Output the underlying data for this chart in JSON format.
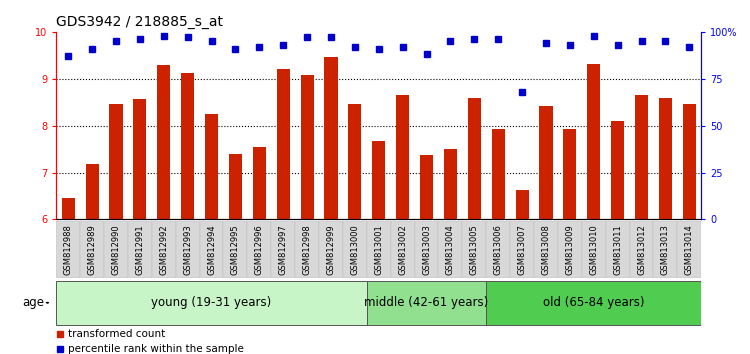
{
  "title": "GDS3942 / 218885_s_at",
  "samples": [
    "GSM812988",
    "GSM812989",
    "GSM812990",
    "GSM812991",
    "GSM812992",
    "GSM812993",
    "GSM812994",
    "GSM812995",
    "GSM812996",
    "GSM812997",
    "GSM812998",
    "GSM812999",
    "GSM813000",
    "GSM813001",
    "GSM813002",
    "GSM813003",
    "GSM813004",
    "GSM813005",
    "GSM813006",
    "GSM813007",
    "GSM813008",
    "GSM813009",
    "GSM813010",
    "GSM813011",
    "GSM813012",
    "GSM813013",
    "GSM813014"
  ],
  "bar_values": [
    6.45,
    7.18,
    8.47,
    8.57,
    9.3,
    9.12,
    8.25,
    7.4,
    7.55,
    9.2,
    9.07,
    9.47,
    8.47,
    7.68,
    8.65,
    7.38,
    7.5,
    8.6,
    7.93,
    6.62,
    8.42,
    7.93,
    9.31,
    8.1,
    8.65,
    8.58,
    8.47
  ],
  "percentile_values": [
    87,
    91,
    95,
    96,
    98,
    97,
    95,
    91,
    92,
    93,
    97,
    97,
    92,
    91,
    92,
    88,
    95,
    96,
    96,
    68,
    94,
    93,
    98,
    93,
    95,
    95,
    92
  ],
  "groups": [
    {
      "label": "young (19-31 years)",
      "start": 0,
      "end": 13,
      "color": "#c8f5c8"
    },
    {
      "label": "middle (42-61 years)",
      "start": 13,
      "end": 18,
      "color": "#90e090"
    },
    {
      "label": "old (65-84 years)",
      "start": 18,
      "end": 27,
      "color": "#50cc50"
    }
  ],
  "bar_color": "#cc2200",
  "dot_color": "#0000cc",
  "ylim_left": [
    6,
    10
  ],
  "ylim_right": [
    0,
    100
  ],
  "yticks_left": [
    6,
    7,
    8,
    9,
    10
  ],
  "yticks_right": [
    0,
    25,
    50,
    75,
    100
  ],
  "ytick_labels_right": [
    "0",
    "25",
    "50",
    "75",
    "100%"
  ],
  "dotted_lines": [
    7,
    8,
    9
  ],
  "legend_items": [
    {
      "label": "transformed count",
      "color": "#cc2200"
    },
    {
      "label": "percentile rank within the sample",
      "color": "#0000cc"
    }
  ],
  "age_label": "age",
  "title_fontsize": 10,
  "tick_fontsize": 7,
  "group_fontsize": 8.5,
  "bar_width": 0.55,
  "xtick_bg": "#d8d8d8"
}
